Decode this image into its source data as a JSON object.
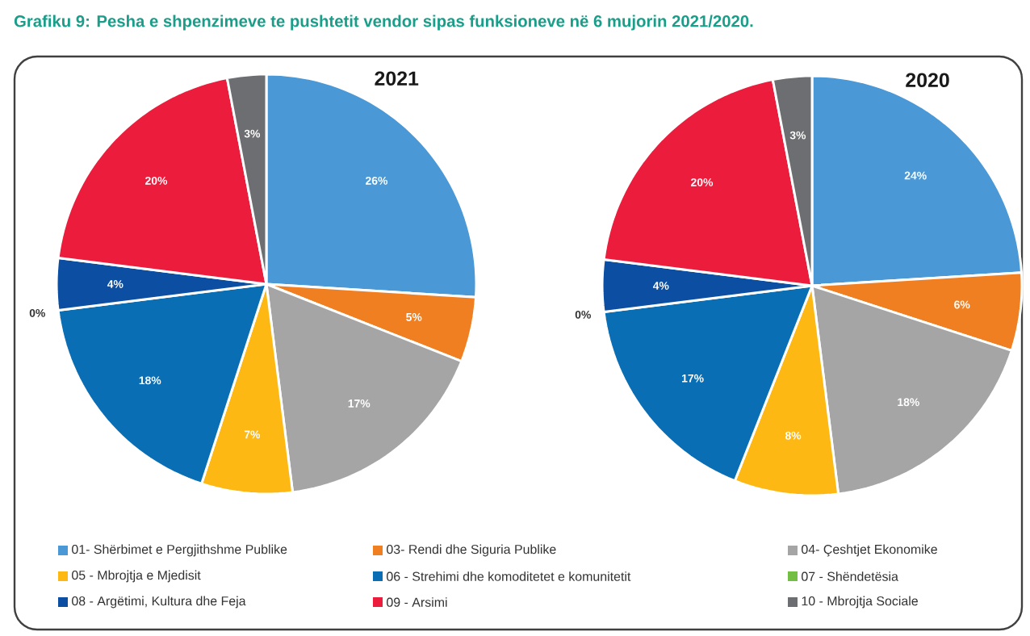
{
  "chart_data": [
    {
      "type": "pie",
      "title": "2021",
      "annotations": [
        "Grafiku 9: Pesha e shpenzimeve te pushtetit vendor sipas funksioneve në 6 mujorin 2021/2020."
      ],
      "categories": [
        "01- Shërbimet e Pergjithshme Publike",
        "03- Rendi dhe Siguria Publike",
        "04- Çeshtjet Ekonomike",
        "05 - Mbrojtja e Mjedisit",
        "06 - Strehimi dhe komoditetet e komunitetit",
        "07 - Shëndetësia",
        "08 - Argëtimi, Kultura dhe Feja",
        "09 - Arsimi",
        "10 - Mbrojtja Sociale"
      ],
      "values": [
        26,
        5,
        17,
        7,
        18,
        0,
        4,
        20,
        3
      ],
      "value_labels": [
        "26%",
        "5%",
        "17%",
        "7%",
        "18%",
        "0%",
        "4%",
        "20%",
        "3%"
      ],
      "colors": [
        "#4a98d6",
        "#f07f22",
        "#a5a5a5",
        "#fdb813",
        "#0a6eb4",
        "#72bf44",
        "#0b4ea2",
        "#ec1c3c",
        "#6d6e71"
      ],
      "legend": "bottom"
    },
    {
      "type": "pie",
      "title": "2020",
      "categories": [
        null,
        null,
        null,
        null,
        null,
        null,
        null,
        null,
        null
      ],
      "values": [
        24,
        6,
        18,
        8,
        17,
        0,
        4,
        20,
        3
      ],
      "value_labels": [
        "24%",
        "6%",
        "18%",
        "8%",
        "17%",
        "0%",
        "4%",
        "20%",
        "3%"
      ],
      "colors": [
        "#4a98d6",
        "#f07f22",
        "#a5a5a5",
        "#fdb813",
        "#0a6eb4",
        "#72bf44",
        "#0b4ea2",
        "#ec1c3c",
        "#6d6e71"
      ],
      "legend": false
    }
  ]
}
